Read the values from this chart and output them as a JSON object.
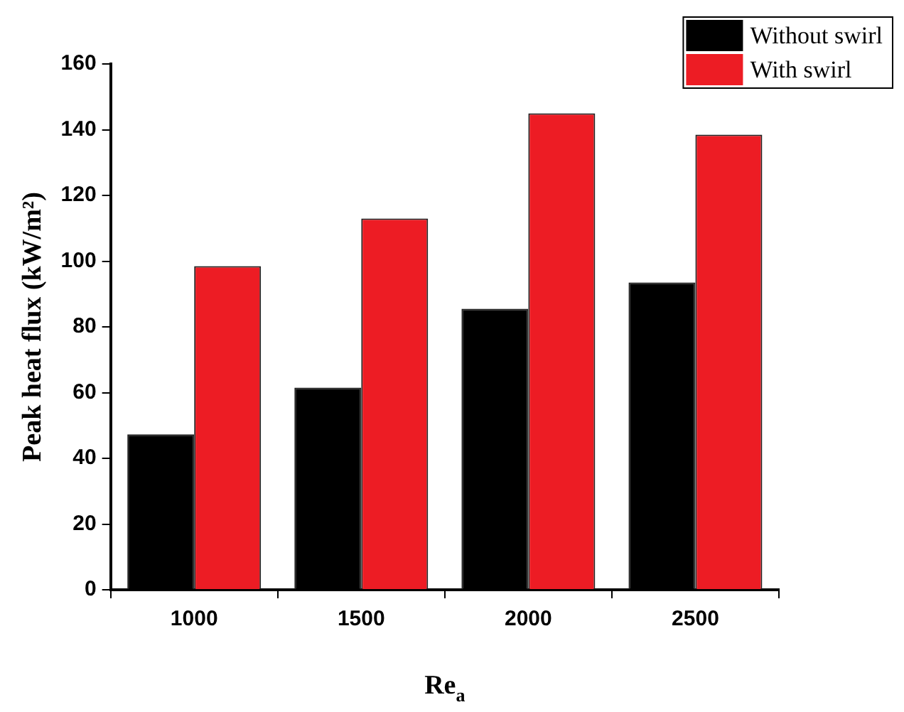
{
  "chart_data": {
    "type": "bar",
    "xlabel": "Re$_{a}$",
    "ylabel": "Peak heat flux (kW/m²)",
    "categories": [
      "1000",
      "1500",
      "2000",
      "2500"
    ],
    "series": [
      {
        "name": "Without swirl",
        "color": "#000000",
        "values": [
          47.3,
          61.5,
          85.5,
          93.5
        ]
      },
      {
        "name": "With swirl",
        "color": "#ed1c24",
        "values": [
          98.5,
          113,
          145,
          138.5
        ]
      }
    ],
    "ylim": [
      0,
      160
    ],
    "yticks": [
      0,
      20,
      40,
      60,
      80,
      100,
      120,
      140,
      160
    ],
    "grid": false,
    "legend": "top right"
  }
}
